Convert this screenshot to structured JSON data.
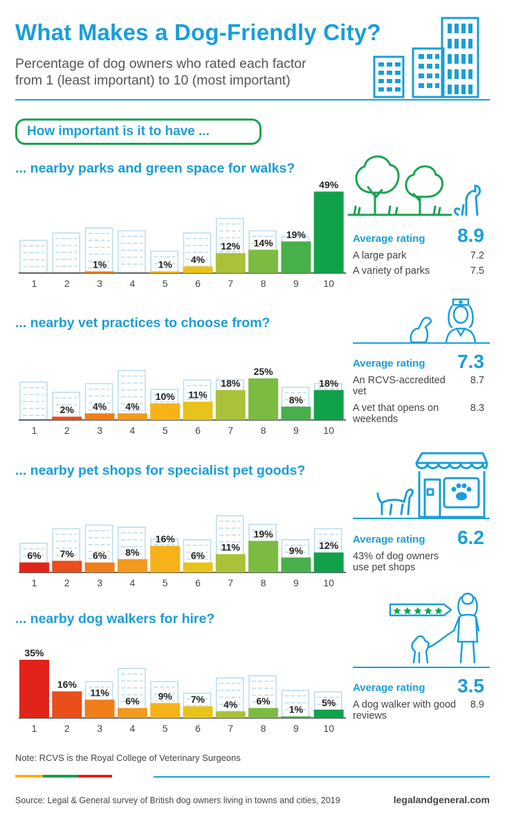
{
  "header": {
    "title": "What Makes a Dog-Friendly City?",
    "subtitle_line1": "Percentage of dog owners who rated each factor",
    "subtitle_line2": "from 1 (least important) to 10 (most important)"
  },
  "question_intro": "How important is it to have ...",
  "colors": {
    "accent": "#1a9ed8",
    "green_border": "#1aa350",
    "scale": [
      "#e2231a",
      "#e94e1b",
      "#ef7d1a",
      "#f39a1e",
      "#f7b219",
      "#e8c31c",
      "#a9c23a",
      "#7cbb41",
      "#48b04b",
      "#12a14b"
    ],
    "building_outline": "#b7dbef"
  },
  "sections": [
    {
      "question": "... nearby parks and green space for walks?",
      "rating_label": "Average rating",
      "rating_value": "8.9",
      "details": [
        {
          "label": "A large park",
          "value": "7.2"
        },
        {
          "label": "A variety of parks",
          "value": "7.5"
        }
      ]
    },
    {
      "question": "... nearby vet practices to choose from?",
      "rating_label": "Average rating",
      "rating_value": "7.3",
      "details": [
        {
          "label": "An RCVS-accredited vet",
          "value": "8.7"
        },
        {
          "label": "A vet that opens on weekends",
          "value": "8.3"
        }
      ]
    },
    {
      "question": "... nearby pet shops for specialist pet goods?",
      "rating_label": "Average rating",
      "rating_value": "6.2",
      "details": [
        {
          "label": "43% of dog owners use pet shops",
          "value": ""
        }
      ]
    },
    {
      "question": "... nearby dog walkers for hire?",
      "rating_label": "Average rating",
      "rating_value": "3.5",
      "details": [
        {
          "label": "A dog walker with good reviews",
          "value": "8.9"
        }
      ]
    }
  ],
  "chart_data": [
    {
      "type": "bar",
      "title": "... nearby parks and green space for walks?",
      "categories": [
        "1",
        "2",
        "3",
        "4",
        "5",
        "6",
        "7",
        "8",
        "9",
        "10"
      ],
      "values": [
        0,
        0,
        1,
        0,
        1,
        4,
        12,
        14,
        19,
        49
      ],
      "labels": [
        "",
        "",
        "1%",
        "",
        "1%",
        "4%",
        "12%",
        "14%",
        "19%",
        "49%"
      ]
    },
    {
      "type": "bar",
      "title": "... nearby vet practices to choose from?",
      "categories": [
        "1",
        "2",
        "3",
        "4",
        "5",
        "6",
        "7",
        "8",
        "9",
        "10"
      ],
      "values": [
        0,
        2,
        4,
        4,
        10,
        11,
        18,
        25,
        8,
        18
      ],
      "labels": [
        "",
        "2%",
        "4%",
        "4%",
        "10%",
        "11%",
        "18%",
        "25%",
        "8%",
        "18%"
      ]
    },
    {
      "type": "bar",
      "title": "... nearby pet shops for specialist pet goods?",
      "categories": [
        "1",
        "2",
        "3",
        "4",
        "5",
        "6",
        "7",
        "8",
        "9",
        "10"
      ],
      "values": [
        6,
        7,
        6,
        8,
        16,
        6,
        11,
        19,
        9,
        12
      ],
      "labels": [
        "6%",
        "7%",
        "6%",
        "8%",
        "16%",
        "6%",
        "11%",
        "19%",
        "9%",
        "12%"
      ]
    },
    {
      "type": "bar",
      "title": "... nearby dog walkers for hire?",
      "categories": [
        "1",
        "2",
        "3",
        "4",
        "5",
        "6",
        "7",
        "8",
        "9",
        "10"
      ],
      "values": [
        35,
        16,
        11,
        6,
        9,
        7,
        4,
        6,
        1,
        5
      ],
      "labels": [
        "35%",
        "16%",
        "11%",
        "6%",
        "9%",
        "7%",
        "4%",
        "6%",
        "1%",
        "5%"
      ]
    }
  ],
  "footer": {
    "note": "Note: RCVS is the Royal College of Veterinary Surgeons",
    "source": "Source: Legal & General survey of British dog owners living in towns and cities, 2019",
    "brand": "legalandgeneral.com"
  }
}
